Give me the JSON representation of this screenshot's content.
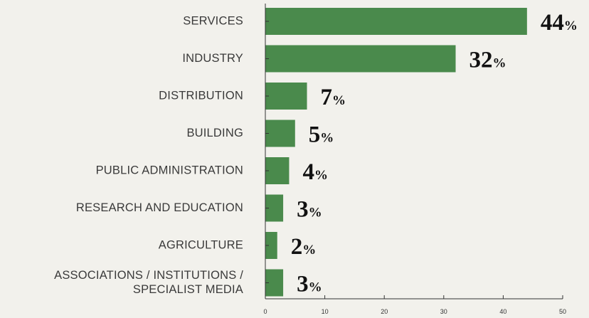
{
  "chart_data": {
    "type": "bar",
    "orientation": "horizontal",
    "categories": [
      [
        "SERVICES"
      ],
      [
        "INDUSTRY"
      ],
      [
        "DISTRIBUTION"
      ],
      [
        "BUILDING"
      ],
      [
        "PUBLIC ADMINISTRATION"
      ],
      [
        "RESEARCH AND EDUCATION"
      ],
      [
        "AGRICULTURE"
      ],
      [
        "ASSOCIATIONS / INSTITUTIONS /",
        "SPECIALIST MEDIA"
      ]
    ],
    "values": [
      44,
      32,
      7,
      5,
      4,
      3,
      2,
      3
    ],
    "value_labels": [
      "44",
      "32",
      "7",
      "5",
      "4",
      "3",
      "2",
      "3"
    ],
    "value_suffix": "%",
    "xlim": [
      0,
      50
    ],
    "xticks": [
      0,
      10,
      20,
      30,
      40,
      50
    ],
    "bar_color": "#4a8a4c",
    "grid": false
  }
}
